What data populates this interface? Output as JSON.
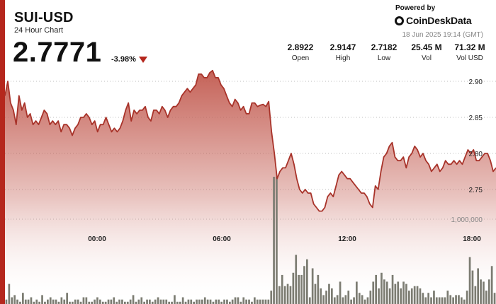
{
  "header": {
    "symbol": "SUI-USD",
    "subtitle": "24 Hour Chart",
    "price": "2.7771",
    "change": "-3.98%",
    "direction_icon": "down-triangle-icon",
    "powered_by": "Powered by",
    "brand": "CoinDeskData",
    "brand_icon": "coindesk-logo-icon",
    "timestamp": "18 Jun 2025 19:14 (GMT)"
  },
  "stats": [
    {
      "value": "2.8922",
      "label": "Open"
    },
    {
      "value": "2.9147",
      "label": "High"
    },
    {
      "value": "2.7182",
      "label": "Low"
    },
    {
      "value": "25.45 M",
      "label": "Vol"
    },
    {
      "value": "71.32 M",
      "label": "Vol USD"
    }
  ],
  "colors": {
    "accent": "#b5271d",
    "line": "#a8332a",
    "area_top": "#c25a4f",
    "volume": "#7c7c72",
    "grid": "#bdbdbd"
  },
  "chart_data": {
    "type": "area",
    "x_axis": {
      "unit": "time (UTC)",
      "range": [
        "19:14 (17 Jun)",
        "19:14 (18 Jun)"
      ],
      "ticks": [
        "00:00",
        "06:00",
        "12:00",
        "18:00"
      ]
    },
    "y_axis": {
      "range": [
        2.67,
        2.92
      ],
      "ticks": [
        "2.90",
        "2.85",
        "2.80",
        "2.75"
      ],
      "side": "right",
      "grid": "dotted"
    },
    "volume_axis": {
      "ticks": [
        "1,000,000"
      ]
    },
    "series": [
      {
        "kind": "price",
        "values": [
          2.88,
          2.9,
          2.87,
          2.86,
          2.84,
          2.88,
          2.86,
          2.87,
          2.85,
          2.855,
          2.84,
          2.845,
          2.84,
          2.85,
          2.86,
          2.855,
          2.84,
          2.845,
          2.84,
          2.845,
          2.83,
          2.84,
          2.84,
          2.835,
          2.825,
          2.835,
          2.84,
          2.85,
          2.85,
          2.855,
          2.85,
          2.84,
          2.845,
          2.83,
          2.84,
          2.84,
          2.85,
          2.84,
          2.83,
          2.835,
          2.83,
          2.835,
          2.845,
          2.86,
          2.87,
          2.845,
          2.86,
          2.855,
          2.86,
          2.86,
          2.865,
          2.85,
          2.845,
          2.86,
          2.86,
          2.855,
          2.865,
          2.86,
          2.85,
          2.86,
          2.865,
          2.865,
          2.87,
          2.88,
          2.885,
          2.89,
          2.885,
          2.89,
          2.895,
          2.91,
          2.91,
          2.905,
          2.905,
          2.912,
          2.915,
          2.905,
          2.905,
          2.895,
          2.89,
          2.88,
          2.87,
          2.865,
          2.875,
          2.87,
          2.86,
          2.865,
          2.855,
          2.855,
          2.87,
          2.87,
          2.865,
          2.867,
          2.868,
          2.865,
          2.872,
          2.83,
          2.8,
          2.765,
          2.775,
          2.78,
          2.78,
          2.79,
          2.8,
          2.785,
          2.765,
          2.75,
          2.745,
          2.75,
          2.745,
          2.745,
          2.73,
          2.725,
          2.72,
          2.72,
          2.725,
          2.74,
          2.745,
          2.74,
          2.755,
          2.77,
          2.775,
          2.77,
          2.765,
          2.765,
          2.76,
          2.755,
          2.75,
          2.745,
          2.745,
          2.74,
          2.73,
          2.725,
          2.755,
          2.75,
          2.775,
          2.795,
          2.8,
          2.81,
          2.815,
          2.795,
          2.79,
          2.79,
          2.795,
          2.78,
          2.795,
          2.8,
          2.81,
          2.805,
          2.795,
          2.8,
          2.79,
          2.785,
          2.775,
          2.78,
          2.785,
          2.775,
          2.78,
          2.79,
          2.785,
          2.785,
          2.79,
          2.785,
          2.79,
          2.785,
          2.795,
          2.805,
          2.8,
          2.805,
          2.79,
          2.79,
          2.795,
          2.8,
          2.8,
          2.79,
          2.775,
          2.78
        ]
      },
      {
        "kind": "volume",
        "values": [
          2,
          9,
          3,
          4,
          2,
          1,
          5,
          2,
          2,
          3,
          1,
          2,
          1,
          4,
          1,
          2,
          3,
          2,
          2,
          1,
          3,
          2,
          5,
          1,
          1,
          2,
          2,
          1,
          3,
          3,
          1,
          1,
          2,
          3,
          2,
          1,
          1,
          2,
          2,
          3,
          1,
          2,
          2,
          1,
          1,
          2,
          4,
          1,
          2,
          3,
          1,
          2,
          2,
          1,
          2,
          3,
          2,
          2,
          2,
          1,
          1,
          4,
          1,
          1,
          3,
          1,
          2,
          2,
          1,
          2,
          2,
          2,
          3,
          2,
          2,
          1,
          2,
          2,
          1,
          2,
          2,
          1,
          2,
          3,
          3,
          1,
          3,
          2,
          2,
          1,
          3,
          2,
          2,
          2,
          2,
          2,
          6,
          57,
          57,
          8,
          13,
          8,
          9,
          8,
          14,
          22,
          13,
          13,
          17,
          20,
          3,
          16,
          9,
          13,
          7,
          4,
          6,
          9,
          7,
          3,
          4,
          10,
          3,
          4,
          6,
          2,
          3,
          10,
          5,
          4,
          2,
          3,
          6,
          10,
          13,
          7,
          14,
          11,
          10,
          7,
          13,
          9,
          10,
          7,
          10,
          9,
          6,
          7,
          8,
          8,
          7,
          5,
          3,
          5,
          3,
          6,
          3,
          3,
          3,
          3,
          6,
          4,
          3,
          4,
          4,
          3,
          2,
          6,
          21,
          15,
          8,
          16,
          11,
          10,
          6,
          11,
          17,
          5
        ]
      }
    ]
  }
}
